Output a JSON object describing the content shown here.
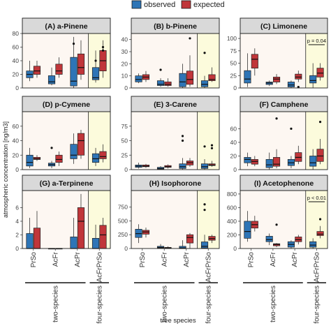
{
  "legend": {
    "items": [
      {
        "label": "observed",
        "color": "#2e75b6"
      },
      {
        "label": "expected",
        "color": "#c0363a"
      }
    ]
  },
  "axes": {
    "ylabel": "atmospheric concentration [ng/m3]",
    "xlabel": "tree species",
    "categories": [
      "PrSo",
      "AcFr",
      "AcPr",
      "AcFrPrSo"
    ],
    "group_labels": [
      "two-species",
      "four-species"
    ]
  },
  "chart_data": [
    {
      "type": "box",
      "title": "(A) a-Pinene",
      "ylim": [
        0,
        80
      ],
      "yticks": [
        0,
        20,
        40,
        60,
        80
      ],
      "series": [
        {
          "name": "observed",
          "boxes": [
            [
              10,
              15,
              20,
              25,
              40
            ],
            [
              4,
              6,
              9,
              18,
              30
            ],
            [
              0,
              3,
              10,
              45,
              75
            ],
            [
              8,
              12,
              15,
              30,
              55
            ]
          ],
          "outliers": [
            [],
            [],
            [
              65
            ],
            [
              40
            ]
          ]
        },
        {
          "name": "expected",
          "boxes": [
            [
              15,
              20,
              25,
              32,
              40
            ],
            [
              15,
              20,
              25,
              35,
              45
            ],
            [
              12,
              20,
              30,
              50,
              70
            ],
            [
              15,
              25,
              40,
              55,
              70
            ]
          ],
          "outliers": [
            [],
            [],
            [],
            [
              55,
              60
            ]
          ]
        }
      ]
    },
    {
      "type": "box",
      "title": "(B) b-Pinene",
      "ylim": [
        0,
        45
      ],
      "yticks": [
        0,
        10,
        20,
        30,
        40
      ],
      "series": [
        {
          "name": "observed",
          "boxes": [
            [
              4,
              5,
              7,
              10,
              12
            ],
            [
              1,
              2,
              3,
              6,
              8
            ],
            [
              0,
              1,
              5,
              12,
              20
            ],
            [
              0,
              1,
              3,
              6,
              10
            ]
          ],
          "outliers": [
            [],
            [
              15
            ],
            [],
            [
              29
            ]
          ]
        },
        {
          "name": "expected",
          "boxes": [
            [
              5,
              7,
              9,
              11,
              14
            ],
            [
              1,
              2,
              3,
              5,
              8
            ],
            [
              1,
              3,
              7,
              14,
              27
            ],
            [
              5,
              6,
              7,
              11,
              17
            ]
          ],
          "outliers": [
            [],
            [],
            [
              41
            ],
            []
          ]
        }
      ]
    },
    {
      "type": "box",
      "title": "(C) Limonene",
      "ylim": [
        0,
        110
      ],
      "yticks": [
        0,
        25,
        50,
        75,
        100
      ],
      "annotation": "p = 0.04",
      "series": [
        {
          "name": "observed",
          "boxes": [
            [
              2,
              10,
              18,
              35,
              70
            ],
            [
              4,
              7,
              10,
              12,
              15
            ],
            [
              0,
              2,
              6,
              12,
              15
            ],
            [
              0,
              10,
              15,
              25,
              50
            ]
          ],
          "outliers": [
            [],
            [],
            [],
            []
          ]
        },
        {
          "name": "expected",
          "boxes": [
            [
              25,
              40,
              58,
              68,
              80
            ],
            [
              8,
              12,
              18,
              22,
              28
            ],
            [
              12,
              18,
              22,
              28,
              35
            ],
            [
              15,
              22,
              30,
              40,
              50
            ]
          ],
          "outliers": [
            [],
            [],
            [
              2
            ],
            []
          ]
        }
      ]
    },
    {
      "type": "box",
      "title": "(D) p-Cymene",
      "ylim": [
        0,
        80
      ],
      "yticks": [
        0,
        20,
        40,
        60
      ],
      "series": [
        {
          "name": "observed",
          "boxes": [
            [
              2,
              5,
              10,
              20,
              30
            ],
            [
              2,
              5,
              7,
              9,
              12
            ],
            [
              8,
              15,
              20,
              35,
              50
            ],
            [
              5,
              10,
              15,
              22,
              30
            ]
          ],
          "outliers": [
            [],
            [
              30
            ],
            [],
            []
          ]
        },
        {
          "name": "expected",
          "boxes": [
            [
              12,
              14,
              15,
              17,
              20
            ],
            [
              5,
              10,
              14,
              20,
              25
            ],
            [
              15,
              20,
              40,
              50,
              55
            ],
            [
              10,
              15,
              18,
              25,
              35
            ]
          ],
          "outliers": [
            [],
            [],
            [],
            []
          ]
        }
      ]
    },
    {
      "type": "box",
      "title": "(E) 3-Carene",
      "ylim": [
        0,
        100
      ],
      "yticks": [
        0,
        25,
        50,
        75
      ],
      "series": [
        {
          "name": "observed",
          "boxes": [
            [
              2,
              4,
              6,
              8,
              12
            ],
            [
              0,
              1,
              2,
              4,
              6
            ],
            [
              0,
              2,
              5,
              10,
              20
            ],
            [
              0,
              2,
              5,
              10,
              18
            ]
          ],
          "outliers": [
            [],
            [],
            [
              50,
              58
            ],
            [
              40
            ]
          ]
        },
        {
          "name": "expected",
          "boxes": [
            [
              3,
              5,
              6,
              8,
              10
            ],
            [
              2,
              4,
              5,
              7,
              9
            ],
            [
              5,
              8,
              12,
              15,
              20
            ],
            [
              5,
              7,
              8,
              10,
              15
            ]
          ],
          "outliers": [
            [],
            [],
            [],
            [
              37,
              42
            ]
          ]
        }
      ]
    },
    {
      "type": "box",
      "title": "(F) Camphene",
      "ylim": [
        0,
        85
      ],
      "yticks": [
        0,
        20,
        40,
        60
      ],
      "series": [
        {
          "name": "observed",
          "boxes": [
            [
              5,
              10,
              15,
              18,
              25
            ],
            [
              0,
              3,
              7,
              15,
              25
            ],
            [
              2,
              6,
              10,
              15,
              20
            ],
            [
              0,
              5,
              10,
              20,
              30
            ]
          ],
          "outliers": [
            [],
            [],
            [
              60
            ],
            []
          ]
        },
        {
          "name": "expected",
          "boxes": [
            [
              5,
              8,
              12,
              15,
              20
            ],
            [
              2,
              5,
              8,
              18,
              30
            ],
            [
              8,
              12,
              18,
              25,
              35
            ],
            [
              8,
              12,
              20,
              30,
              45
            ]
          ],
          "outliers": [
            [],
            [
              75
            ],
            [],
            [
              70
            ]
          ]
        }
      ]
    },
    {
      "type": "box",
      "title": "(G) a-Terpinene",
      "ylim": [
        0,
        8.5
      ],
      "yticks": [
        0,
        2,
        4,
        6
      ],
      "series": [
        {
          "name": "observed",
          "boxes": [
            [
              0,
              0,
              0,
              2.2,
              4.5
            ],
            [
              0,
              0,
              0,
              0,
              0
            ],
            [
              0,
              0,
              0,
              1.7,
              4.5
            ],
            [
              0,
              0,
              0,
              1.5,
              3.5
            ]
          ],
          "outliers": [
            [],
            [],
            [],
            []
          ]
        },
        {
          "name": "expected",
          "boxes": [
            [
              0,
              0,
              0,
              3,
              5.5
            ],
            [
              0,
              0,
              0,
              0,
              0
            ],
            [
              0,
              0,
              4,
              6,
              8
            ],
            [
              0,
              0,
              2,
              3.4,
              4.5
            ]
          ],
          "outliers": [
            [],
            [],
            [],
            []
          ]
        }
      ]
    },
    {
      "type": "box",
      "title": "(H) Isophorone",
      "ylim": [
        0,
        1050
      ],
      "yticks": [
        0,
        250,
        500,
        750
      ],
      "series": [
        {
          "name": "observed",
          "boxes": [
            [
              100,
              200,
              270,
              350,
              440
            ],
            [
              0,
              10,
              20,
              40,
              80
            ],
            [
              0,
              0,
              10,
              40,
              150
            ],
            [
              0,
              10,
              40,
              120,
              250
            ]
          ],
          "outliers": [
            [],
            [],
            [],
            [
              700,
              800
            ]
          ]
        },
        {
          "name": "expected",
          "boxes": [
            [
              200,
              260,
              300,
              330,
              380
            ],
            [
              0,
              5,
              10,
              20,
              40
            ],
            [
              0,
              100,
              200,
              250,
              280
            ],
            [
              100,
              150,
              180,
              220,
              250
            ]
          ],
          "outliers": [
            [],
            [],
            [],
            []
          ]
        }
      ]
    },
    {
      "type": "box",
      "title": "(I) Acetophenone",
      "ylim": [
        0,
        850
      ],
      "yticks": [
        0,
        200,
        400,
        600,
        800
      ],
      "annotation": "p < 0.01",
      "series": [
        {
          "name": "observed",
          "boxes": [
            [
              100,
              150,
              250,
              400,
              550
            ],
            [
              50,
              100,
              130,
              180,
              220
            ],
            [
              0,
              20,
              60,
              100,
              120
            ],
            [
              0,
              20,
              50,
              100,
              150
            ]
          ],
          "outliers": [
            [],
            [],
            [],
            []
          ]
        },
        {
          "name": "expected",
          "boxes": [
            [
              250,
              300,
              350,
              400,
              480
            ],
            [
              20,
              40,
              60,
              70,
              80
            ],
            [
              60,
              100,
              130,
              170,
              200
            ],
            [
              150,
              190,
              210,
              250,
              330
            ]
          ],
          "outliers": [
            [],
            [
              350
            ],
            [],
            [
              430
            ]
          ]
        }
      ]
    }
  ]
}
